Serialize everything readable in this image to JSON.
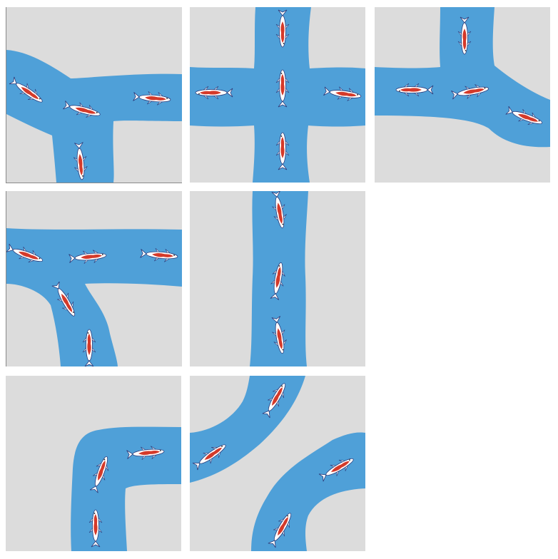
{
  "colors": {
    "background": "#ffffff",
    "ground": "#dcdcdc",
    "water": "#4fa0d8",
    "fish_body": "#ffffff",
    "fish_pattern": "#d43a2a",
    "fish_outline": "#2a3a7a"
  },
  "board": {
    "tiles": [
      {
        "id": "tile-1",
        "type": "t-junction-left-down-right",
        "fish_count": 4
      },
      {
        "id": "tile-2",
        "type": "crossroads",
        "fish_count": 5
      },
      {
        "id": "tile-3",
        "type": "t-junction-up-left-right",
        "fish_count": 4
      },
      {
        "id": "tile-4",
        "type": "t-junction-left-right-down",
        "fish_count": 5
      },
      {
        "id": "tile-5",
        "type": "straight-vertical",
        "fish_count": 3
      },
      {
        "id": "tile-6",
        "type": "corner-right-down",
        "fish_count": 3
      },
      {
        "id": "tile-7",
        "type": "double-diagonal-corners",
        "fish_count": 4
      }
    ]
  }
}
